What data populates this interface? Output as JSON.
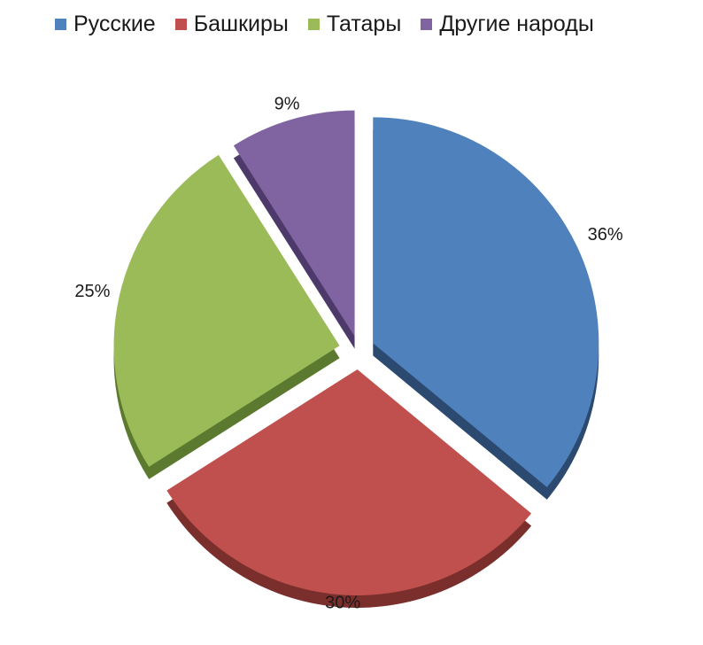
{
  "chart_data": {
    "type": "pie",
    "categories": [
      "Русские",
      "Башкиры",
      "Татары",
      "Другие народы"
    ],
    "values": [
      36,
      30,
      25,
      9
    ],
    "data_labels": [
      "36%",
      "30%",
      "25%",
      "9%"
    ],
    "legend_position": "top",
    "style": "exploded-3d",
    "title": "",
    "colors": [
      "#4f81bd",
      "#c0504d",
      "#9bbb59",
      "#8064a2"
    ],
    "side_colors": [
      "#2c4a70",
      "#7a2f2d",
      "#5c7a2f",
      "#4d3a6b"
    ]
  }
}
